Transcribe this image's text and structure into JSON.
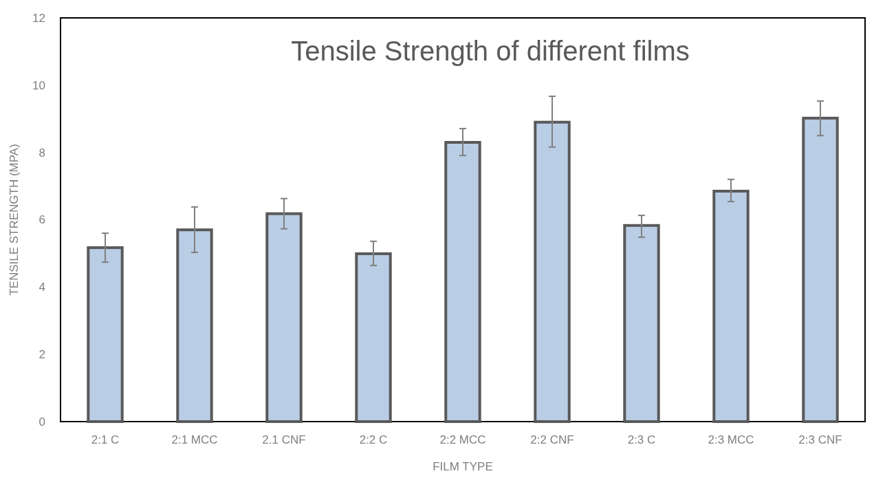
{
  "chart_data": {
    "type": "bar",
    "title": "Tensile Strength of different films",
    "xlabel": "FILM TYPE",
    "ylabel": "TENSILE STRENGTH (MPA)",
    "categories": [
      "2:1 C",
      "2:1 MCC",
      "2.1 CNF",
      "2:2 C",
      "2:2 MCC",
      "2:2 CNF",
      "2:3 C",
      "2:3 MCC",
      "2:3 CNF"
    ],
    "values": [
      5.17,
      5.7,
      6.18,
      4.99,
      8.3,
      8.9,
      5.83,
      6.85,
      9.02
    ],
    "errors": [
      [
        4.74,
        5.6
      ],
      [
        5.03,
        6.38
      ],
      [
        5.73,
        6.63
      ],
      [
        4.64,
        5.36
      ],
      [
        7.91,
        8.71
      ],
      [
        8.16,
        9.67
      ],
      [
        5.48,
        6.13
      ],
      [
        6.54,
        7.2
      ],
      [
        8.5,
        9.53
      ]
    ],
    "color": "#b9cde5",
    "ylim": [
      0,
      12
    ],
    "yticks": [
      0,
      2,
      4,
      6,
      8,
      10,
      12
    ],
    "grid": false
  }
}
